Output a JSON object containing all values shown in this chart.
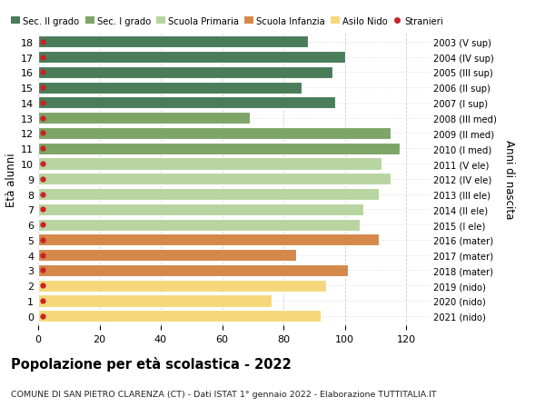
{
  "ages": [
    18,
    17,
    16,
    15,
    14,
    13,
    12,
    11,
    10,
    9,
    8,
    7,
    6,
    5,
    4,
    3,
    2,
    1,
    0
  ],
  "labels_right": [
    "2003 (V sup)",
    "2004 (IV sup)",
    "2005 (III sup)",
    "2006 (II sup)",
    "2007 (I sup)",
    "2008 (III med)",
    "2009 (II med)",
    "2010 (I med)",
    "2011 (V ele)",
    "2012 (IV ele)",
    "2013 (III ele)",
    "2014 (II ele)",
    "2015 (I ele)",
    "2016 (mater)",
    "2017 (mater)",
    "2018 (mater)",
    "2019 (nido)",
    "2020 (nido)",
    "2021 (nido)"
  ],
  "values": [
    88,
    100,
    96,
    86,
    97,
    69,
    115,
    118,
    112,
    115,
    111,
    106,
    105,
    111,
    84,
    101,
    94,
    76,
    92
  ],
  "bar_colors": [
    "#4a7c59",
    "#4a7c59",
    "#4a7c59",
    "#4a7c59",
    "#4a7c59",
    "#7da567",
    "#7da567",
    "#7da567",
    "#b8d4a0",
    "#b8d4a0",
    "#b8d4a0",
    "#b8d4a0",
    "#b8d4a0",
    "#d4884a",
    "#d4884a",
    "#d4884a",
    "#f5d87a",
    "#f5d87a",
    "#f5d87a"
  ],
  "legend_labels": [
    "Sec. II grado",
    "Sec. I grado",
    "Scuola Primaria",
    "Scuola Infanzia",
    "Asilo Nido",
    "Stranieri"
  ],
  "legend_colors": [
    "#4a7c59",
    "#7da567",
    "#b8d4a0",
    "#d4884a",
    "#f5d87a",
    "#cc2222"
  ],
  "title": "Popolazione per età scolastica - 2022",
  "subtitle": "COMUNE DI SAN PIETRO CLARENZA (CT) - Dati ISTAT 1° gennaio 2022 - Elaborazione TUTTITALIA.IT",
  "ylabel_left": "Età alunni",
  "ylabel_right": "Anni di nascita",
  "xlim": [
    0,
    128
  ],
  "xticks": [
    0,
    20,
    40,
    60,
    80,
    100,
    120
  ],
  "stranieri_color": "#cc2222",
  "bar_height": 0.78,
  "bg_color": "#ffffff",
  "grid_color": "#cccccc"
}
